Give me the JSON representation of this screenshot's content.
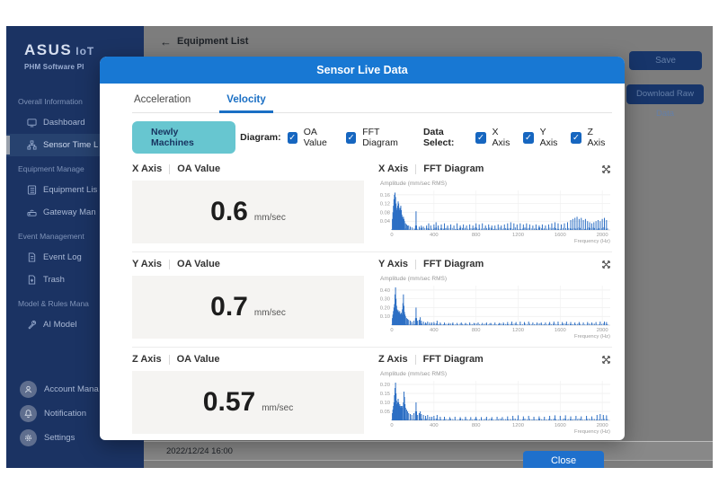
{
  "window": {
    "back_label": "Equipment List",
    "save_label": "Save",
    "download_label": "Download Raw Data",
    "timestamp": "2022/12/24 16:00"
  },
  "sidebar": {
    "logo": "ASUS",
    "logo_suffix": "IoT",
    "subtitle": "PHM Software Pl",
    "sections": [
      {
        "header": "Overall Information",
        "items": [
          {
            "label": "Dashboard",
            "active": false
          },
          {
            "label": "Sensor Time L",
            "active": true
          }
        ]
      },
      {
        "header": "Equipment Manage",
        "items": [
          {
            "label": "Equipment Lis",
            "active": false
          },
          {
            "label": "Gateway Man",
            "active": false
          }
        ]
      },
      {
        "header": "Event Management",
        "items": [
          {
            "label": "Event Log",
            "active": false
          },
          {
            "label": "Trash",
            "active": false
          }
        ]
      },
      {
        "header": "Model & Rules Mana",
        "items": [
          {
            "label": "AI Model",
            "active": false
          }
        ]
      }
    ],
    "footer": [
      {
        "label": "Account Mana"
      },
      {
        "label": "Notification"
      },
      {
        "label": "Settings"
      }
    ]
  },
  "modal": {
    "title": "Sensor Live Data",
    "tabs": [
      {
        "label": "Acceleration",
        "active": false
      },
      {
        "label": "Velocity",
        "active": true
      }
    ],
    "machines_button": "Newly Machines",
    "diagram_label": "Diagram:",
    "diagram_options": [
      {
        "label": "OA Value",
        "checked": true
      },
      {
        "label": "FFT Diagram",
        "checked": true
      }
    ],
    "data_select_label": "Data Select:",
    "data_options": [
      {
        "label": "X Axis",
        "checked": true
      },
      {
        "label": "Y Axis",
        "checked": true
      },
      {
        "label": "Z Axis",
        "checked": true
      }
    ],
    "rows": [
      {
        "axis": "X Axis",
        "oa_label": "OA Value",
        "value": "0.6",
        "unit": "mm/sec",
        "fft_label": "FFT Diagram"
      },
      {
        "axis": "Y Axis",
        "oa_label": "OA Value",
        "value": "0.7",
        "unit": "mm/sec",
        "fft_label": "FFT Diagram"
      },
      {
        "axis": "Z Axis",
        "oa_label": "OA Value",
        "value": "0.57",
        "unit": "mm/sec",
        "fft_label": "FFT Diagram"
      }
    ],
    "close_label": "Close"
  },
  "colors": {
    "accent_blue": "#1878d3",
    "checkbox_blue": "#1666c0",
    "teal_button": "#67c6d0",
    "sidebar_navy": "#1b3363",
    "chart_blue": "#2d6fc4"
  },
  "chart_data": [
    {
      "type": "bar",
      "title": "X Axis FFT Diagram",
      "ylabel": "Amplitude (mm/sec RMS)",
      "xlabel": "Frequency (Hz)",
      "xlim": [
        0,
        2050
      ],
      "ylim": [
        0,
        0.18
      ],
      "xticks": [
        0,
        400,
        800,
        1200,
        1600,
        2000
      ],
      "yticks": [
        0.04,
        0.08,
        0.12,
        0.16
      ],
      "noise_floor": 0.012,
      "points": [
        [
          5,
          0.05
        ],
        [
          10,
          0.08
        ],
        [
          15,
          0.11
        ],
        [
          20,
          0.14
        ],
        [
          25,
          0.16
        ],
        [
          30,
          0.17
        ],
        [
          35,
          0.15
        ],
        [
          40,
          0.12
        ],
        [
          45,
          0.1
        ],
        [
          50,
          0.09
        ],
        [
          55,
          0.11
        ],
        [
          60,
          0.13
        ],
        [
          65,
          0.12
        ],
        [
          70,
          0.1
        ],
        [
          75,
          0.09
        ],
        [
          80,
          0.1
        ],
        [
          85,
          0.11
        ],
        [
          90,
          0.09
        ],
        [
          95,
          0.07
        ],
        [
          100,
          0.06
        ],
        [
          105,
          0.05
        ],
        [
          110,
          0.06
        ],
        [
          115,
          0.05
        ],
        [
          120,
          0.04
        ],
        [
          130,
          0.03
        ],
        [
          140,
          0.025
        ],
        [
          150,
          0.02
        ],
        [
          160,
          0.02
        ],
        [
          175,
          0.015
        ],
        [
          225,
          0.02
        ],
        [
          230,
          0.085
        ],
        [
          235,
          0.02
        ],
        [
          260,
          0.015
        ],
        [
          280,
          0.02
        ],
        [
          300,
          0.015
        ],
        [
          330,
          0.02
        ],
        [
          350,
          0.03
        ],
        [
          370,
          0.02
        ],
        [
          400,
          0.025
        ],
        [
          420,
          0.035
        ],
        [
          440,
          0.02
        ],
        [
          470,
          0.025
        ],
        [
          500,
          0.03
        ],
        [
          530,
          0.02
        ],
        [
          560,
          0.025
        ],
        [
          590,
          0.02
        ],
        [
          620,
          0.03
        ],
        [
          650,
          0.02
        ],
        [
          680,
          0.025
        ],
        [
          710,
          0.02
        ],
        [
          740,
          0.025
        ],
        [
          770,
          0.02
        ],
        [
          800,
          0.03
        ],
        [
          830,
          0.025
        ],
        [
          860,
          0.03
        ],
        [
          890,
          0.02
        ],
        [
          920,
          0.025
        ],
        [
          950,
          0.02
        ],
        [
          980,
          0.02
        ],
        [
          1010,
          0.025
        ],
        [
          1040,
          0.02
        ],
        [
          1070,
          0.025
        ],
        [
          1100,
          0.03
        ],
        [
          1130,
          0.035
        ],
        [
          1160,
          0.03
        ],
        [
          1190,
          0.025
        ],
        [
          1220,
          0.03
        ],
        [
          1250,
          0.025
        ],
        [
          1280,
          0.03
        ],
        [
          1310,
          0.025
        ],
        [
          1340,
          0.02
        ],
        [
          1370,
          0.025
        ],
        [
          1400,
          0.02
        ],
        [
          1430,
          0.025
        ],
        [
          1460,
          0.02
        ],
        [
          1490,
          0.025
        ],
        [
          1520,
          0.03
        ],
        [
          1550,
          0.035
        ],
        [
          1580,
          0.03
        ],
        [
          1610,
          0.025
        ],
        [
          1640,
          0.03
        ],
        [
          1670,
          0.035
        ],
        [
          1700,
          0.045
        ],
        [
          1720,
          0.05
        ],
        [
          1740,
          0.055
        ],
        [
          1760,
          0.06
        ],
        [
          1780,
          0.05
        ],
        [
          1800,
          0.055
        ],
        [
          1820,
          0.045
        ],
        [
          1840,
          0.05
        ],
        [
          1860,
          0.04
        ],
        [
          1880,
          0.035
        ],
        [
          1900,
          0.03
        ],
        [
          1920,
          0.035
        ],
        [
          1940,
          0.04
        ],
        [
          1960,
          0.045
        ],
        [
          1980,
          0.04
        ],
        [
          2000,
          0.05
        ],
        [
          2020,
          0.055
        ],
        [
          2040,
          0.045
        ]
      ]
    },
    {
      "type": "bar",
      "title": "Y Axis FFT Diagram",
      "ylabel": "Amplitude (mm/sec RMS)",
      "xlabel": "Frequency (Hz)",
      "xlim": [
        0,
        2050
      ],
      "ylim": [
        0,
        0.45
      ],
      "xticks": [
        0,
        400,
        800,
        1200,
        1600,
        2000
      ],
      "yticks": [
        0.1,
        0.2,
        0.3,
        0.4
      ],
      "noise_floor": 0.02,
      "points": [
        [
          5,
          0.08
        ],
        [
          10,
          0.12
        ],
        [
          15,
          0.16
        ],
        [
          20,
          0.2
        ],
        [
          25,
          0.24
        ],
        [
          30,
          0.35
        ],
        [
          35,
          0.43
        ],
        [
          40,
          0.3
        ],
        [
          45,
          0.22
        ],
        [
          50,
          0.18
        ],
        [
          55,
          0.16
        ],
        [
          60,
          0.17
        ],
        [
          65,
          0.15
        ],
        [
          70,
          0.14
        ],
        [
          75,
          0.16
        ],
        [
          80,
          0.13
        ],
        [
          85,
          0.12
        ],
        [
          90,
          0.14
        ],
        [
          95,
          0.12
        ],
        [
          100,
          0.18
        ],
        [
          105,
          0.25
        ],
        [
          110,
          0.35
        ],
        [
          115,
          0.22
        ],
        [
          120,
          0.15
        ],
        [
          125,
          0.12
        ],
        [
          130,
          0.1
        ],
        [
          140,
          0.08
        ],
        [
          150,
          0.07
        ],
        [
          160,
          0.06
        ],
        [
          175,
          0.05
        ],
        [
          190,
          0.04
        ],
        [
          210,
          0.05
        ],
        [
          225,
          0.08
        ],
        [
          230,
          0.2
        ],
        [
          235,
          0.08
        ],
        [
          245,
          0.05
        ],
        [
          260,
          0.06
        ],
        [
          270,
          0.09
        ],
        [
          280,
          0.05
        ],
        [
          300,
          0.04
        ],
        [
          320,
          0.03
        ],
        [
          340,
          0.04
        ],
        [
          360,
          0.03
        ],
        [
          380,
          0.03
        ],
        [
          400,
          0.035
        ],
        [
          430,
          0.05
        ],
        [
          460,
          0.03
        ],
        [
          500,
          0.03
        ],
        [
          540,
          0.025
        ],
        [
          580,
          0.03
        ],
        [
          620,
          0.025
        ],
        [
          660,
          0.03
        ],
        [
          700,
          0.025
        ],
        [
          740,
          0.03
        ],
        [
          780,
          0.025
        ],
        [
          820,
          0.03
        ],
        [
          860,
          0.025
        ],
        [
          900,
          0.03
        ],
        [
          940,
          0.025
        ],
        [
          980,
          0.03
        ],
        [
          1020,
          0.025
        ],
        [
          1060,
          0.03
        ],
        [
          1100,
          0.035
        ],
        [
          1140,
          0.04
        ],
        [
          1180,
          0.035
        ],
        [
          1220,
          0.04
        ],
        [
          1260,
          0.035
        ],
        [
          1300,
          0.04
        ],
        [
          1340,
          0.03
        ],
        [
          1380,
          0.03
        ],
        [
          1420,
          0.03
        ],
        [
          1460,
          0.03
        ],
        [
          1500,
          0.035
        ],
        [
          1540,
          0.04
        ],
        [
          1580,
          0.04
        ],
        [
          1620,
          0.035
        ],
        [
          1660,
          0.04
        ],
        [
          1700,
          0.035
        ],
        [
          1740,
          0.03
        ],
        [
          1780,
          0.035
        ],
        [
          1820,
          0.03
        ],
        [
          1860,
          0.035
        ],
        [
          1900,
          0.03
        ],
        [
          1940,
          0.035
        ],
        [
          1980,
          0.04
        ],
        [
          2020,
          0.04
        ],
        [
          2040,
          0.035
        ]
      ]
    },
    {
      "type": "bar",
      "title": "Z Axis FFT Diagram",
      "ylabel": "Amplitude (mm/sec RMS)",
      "xlabel": "Frequency (Hz)",
      "xlim": [
        0,
        2050
      ],
      "ylim": [
        0,
        0.22
      ],
      "xticks": [
        0,
        400,
        800,
        1200,
        1600,
        2000
      ],
      "yticks": [
        0.05,
        0.1,
        0.15,
        0.2
      ],
      "noise_floor": 0.01,
      "points": [
        [
          5,
          0.04
        ],
        [
          10,
          0.06
        ],
        [
          15,
          0.08
        ],
        [
          20,
          0.1
        ],
        [
          25,
          0.14
        ],
        [
          30,
          0.18
        ],
        [
          35,
          0.21
        ],
        [
          40,
          0.15
        ],
        [
          45,
          0.11
        ],
        [
          50,
          0.09
        ],
        [
          55,
          0.1
        ],
        [
          60,
          0.12
        ],
        [
          65,
          0.1
        ],
        [
          70,
          0.08
        ],
        [
          75,
          0.09
        ],
        [
          80,
          0.08
        ],
        [
          85,
          0.07
        ],
        [
          90,
          0.08
        ],
        [
          95,
          0.07
        ],
        [
          100,
          0.08
        ],
        [
          110,
          0.1
        ],
        [
          115,
          0.16
        ],
        [
          120,
          0.13
        ],
        [
          125,
          0.09
        ],
        [
          130,
          0.07
        ],
        [
          140,
          0.06
        ],
        [
          150,
          0.05
        ],
        [
          160,
          0.04
        ],
        [
          175,
          0.035
        ],
        [
          190,
          0.03
        ],
        [
          210,
          0.04
        ],
        [
          225,
          0.05
        ],
        [
          230,
          0.1
        ],
        [
          235,
          0.05
        ],
        [
          245,
          0.03
        ],
        [
          260,
          0.04
        ],
        [
          270,
          0.05
        ],
        [
          280,
          0.035
        ],
        [
          300,
          0.03
        ],
        [
          320,
          0.025
        ],
        [
          340,
          0.03
        ],
        [
          360,
          0.02
        ],
        [
          380,
          0.02
        ],
        [
          400,
          0.025
        ],
        [
          430,
          0.03
        ],
        [
          460,
          0.02
        ],
        [
          500,
          0.02
        ],
        [
          550,
          0.018
        ],
        [
          600,
          0.02
        ],
        [
          650,
          0.018
        ],
        [
          700,
          0.02
        ],
        [
          750,
          0.018
        ],
        [
          800,
          0.02
        ],
        [
          850,
          0.018
        ],
        [
          900,
          0.02
        ],
        [
          950,
          0.018
        ],
        [
          1000,
          0.02
        ],
        [
          1050,
          0.018
        ],
        [
          1100,
          0.022
        ],
        [
          1150,
          0.025
        ],
        [
          1200,
          0.028
        ],
        [
          1250,
          0.022
        ],
        [
          1300,
          0.025
        ],
        [
          1350,
          0.02
        ],
        [
          1400,
          0.022
        ],
        [
          1450,
          0.02
        ],
        [
          1500,
          0.025
        ],
        [
          1550,
          0.028
        ],
        [
          1600,
          0.025
        ],
        [
          1650,
          0.028
        ],
        [
          1700,
          0.022
        ],
        [
          1750,
          0.025
        ],
        [
          1800,
          0.022
        ],
        [
          1850,
          0.025
        ],
        [
          1900,
          0.022
        ],
        [
          1950,
          0.03
        ],
        [
          1980,
          0.035
        ],
        [
          2010,
          0.03
        ],
        [
          2040,
          0.028
        ]
      ]
    }
  ]
}
